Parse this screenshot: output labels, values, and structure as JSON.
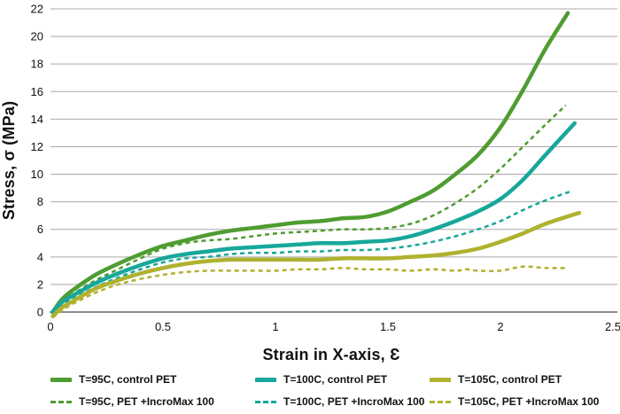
{
  "chart_data": {
    "type": "line",
    "title": "",
    "xlabel": "Strain in X-axis, Ɛ",
    "ylabel": "Stress, σ (MPa)",
    "xlim": [
      0,
      2.5
    ],
    "ylim": [
      0,
      22
    ],
    "x_ticks": [
      0,
      0.5,
      1,
      1.5,
      2,
      2.5
    ],
    "x_tick_labels": [
      "0",
      "0.5",
      "1",
      "1.5",
      "2",
      "2.5"
    ],
    "y_ticks": [
      0,
      2,
      4,
      6,
      8,
      10,
      12,
      14,
      16,
      18,
      20,
      22
    ],
    "y_tick_labels": [
      "0",
      "2",
      "4",
      "6",
      "8",
      "10",
      "12",
      "14",
      "16",
      "18",
      "20",
      "22"
    ],
    "grid": "horizontal",
    "legend_position": "bottom",
    "series": [
      {
        "name": "T=95C, control PET",
        "color": "#4f9c31",
        "style": "solid",
        "points": [
          [
            0.01,
            0
          ],
          [
            0.05,
            0.9
          ],
          [
            0.1,
            1.6
          ],
          [
            0.2,
            2.7
          ],
          [
            0.3,
            3.5
          ],
          [
            0.4,
            4.2
          ],
          [
            0.5,
            4.8
          ],
          [
            0.6,
            5.2
          ],
          [
            0.7,
            5.6
          ],
          [
            0.8,
            5.9
          ],
          [
            0.9,
            6.1
          ],
          [
            1.0,
            6.3
          ],
          [
            1.1,
            6.5
          ],
          [
            1.2,
            6.6
          ],
          [
            1.3,
            6.8
          ],
          [
            1.4,
            6.9
          ],
          [
            1.5,
            7.3
          ],
          [
            1.6,
            8.0
          ],
          [
            1.7,
            8.8
          ],
          [
            1.8,
            10.0
          ],
          [
            1.9,
            11.4
          ],
          [
            2.0,
            13.4
          ],
          [
            2.1,
            16.1
          ],
          [
            2.2,
            19.1
          ],
          [
            2.3,
            21.7
          ]
        ]
      },
      {
        "name": "T=100C, control PET",
        "color": "#17a79b",
        "style": "solid",
        "points": [
          [
            0.01,
            0
          ],
          [
            0.05,
            0.7
          ],
          [
            0.1,
            1.2
          ],
          [
            0.2,
            2.1
          ],
          [
            0.3,
            2.8
          ],
          [
            0.4,
            3.4
          ],
          [
            0.5,
            3.9
          ],
          [
            0.6,
            4.2
          ],
          [
            0.7,
            4.4
          ],
          [
            0.8,
            4.6
          ],
          [
            0.9,
            4.7
          ],
          [
            1.0,
            4.8
          ],
          [
            1.1,
            4.9
          ],
          [
            1.2,
            5.0
          ],
          [
            1.3,
            5.0
          ],
          [
            1.4,
            5.1
          ],
          [
            1.5,
            5.2
          ],
          [
            1.6,
            5.5
          ],
          [
            1.7,
            6.0
          ],
          [
            1.8,
            6.6
          ],
          [
            1.9,
            7.3
          ],
          [
            2.0,
            8.2
          ],
          [
            2.1,
            9.6
          ],
          [
            2.2,
            11.4
          ],
          [
            2.33,
            13.7
          ]
        ]
      },
      {
        "name": "T=105C, control PET",
        "color": "#b0b12f",
        "style": "solid",
        "points": [
          [
            0.01,
            -0.3
          ],
          [
            0.05,
            0.3
          ],
          [
            0.1,
            0.8
          ],
          [
            0.2,
            1.7
          ],
          [
            0.3,
            2.3
          ],
          [
            0.4,
            2.8
          ],
          [
            0.5,
            3.2
          ],
          [
            0.6,
            3.5
          ],
          [
            0.7,
            3.7
          ],
          [
            0.8,
            3.8
          ],
          [
            0.9,
            3.8
          ],
          [
            1.0,
            3.8
          ],
          [
            1.1,
            3.8
          ],
          [
            1.2,
            3.8
          ],
          [
            1.3,
            3.9
          ],
          [
            1.4,
            3.9
          ],
          [
            1.5,
            3.9
          ],
          [
            1.6,
            4.0
          ],
          [
            1.7,
            4.1
          ],
          [
            1.8,
            4.3
          ],
          [
            1.9,
            4.6
          ],
          [
            2.0,
            5.1
          ],
          [
            2.1,
            5.7
          ],
          [
            2.2,
            6.4
          ],
          [
            2.35,
            7.2
          ]
        ]
      },
      {
        "name": "T=95C, PET +IncroMax 100",
        "color": "#4f9c31",
        "style": "dashed",
        "points": [
          [
            0.01,
            0
          ],
          [
            0.05,
            0.7
          ],
          [
            0.1,
            1.3
          ],
          [
            0.2,
            2.3
          ],
          [
            0.3,
            3.1
          ],
          [
            0.4,
            3.9
          ],
          [
            0.5,
            4.6
          ],
          [
            0.6,
            5.0
          ],
          [
            0.7,
            5.2
          ],
          [
            0.8,
            5.3
          ],
          [
            0.9,
            5.5
          ],
          [
            1.0,
            5.7
          ],
          [
            1.1,
            5.8
          ],
          [
            1.2,
            5.9
          ],
          [
            1.3,
            6.0
          ],
          [
            1.4,
            6.0
          ],
          [
            1.5,
            6.1
          ],
          [
            1.6,
            6.4
          ],
          [
            1.7,
            7.0
          ],
          [
            1.8,
            7.9
          ],
          [
            1.9,
            9.0
          ],
          [
            2.0,
            10.4
          ],
          [
            2.1,
            12.0
          ],
          [
            2.2,
            13.6
          ],
          [
            2.29,
            15.0
          ]
        ]
      },
      {
        "name": "T=100C, PET +IncroMax 100",
        "color": "#17a79b",
        "style": "dashed",
        "points": [
          [
            0.01,
            0
          ],
          [
            0.05,
            0.5
          ],
          [
            0.1,
            1.0
          ],
          [
            0.2,
            1.8
          ],
          [
            0.3,
            2.5
          ],
          [
            0.4,
            3.1
          ],
          [
            0.5,
            3.6
          ],
          [
            0.6,
            3.9
          ],
          [
            0.7,
            4.0
          ],
          [
            0.8,
            4.2
          ],
          [
            0.9,
            4.3
          ],
          [
            1.0,
            4.3
          ],
          [
            1.1,
            4.4
          ],
          [
            1.2,
            4.4
          ],
          [
            1.3,
            4.5
          ],
          [
            1.4,
            4.5
          ],
          [
            1.5,
            4.6
          ],
          [
            1.6,
            4.8
          ],
          [
            1.7,
            5.1
          ],
          [
            1.8,
            5.5
          ],
          [
            1.9,
            6.0
          ],
          [
            2.0,
            6.6
          ],
          [
            2.1,
            7.4
          ],
          [
            2.2,
            8.1
          ],
          [
            2.32,
            8.8
          ]
        ]
      },
      {
        "name": "T=105C, PET +IncroMax 100",
        "color": "#b0b12f",
        "style": "dashed",
        "points": [
          [
            0.01,
            -0.4
          ],
          [
            0.05,
            0.1
          ],
          [
            0.1,
            0.6
          ],
          [
            0.2,
            1.4
          ],
          [
            0.3,
            2.0
          ],
          [
            0.4,
            2.4
          ],
          [
            0.5,
            2.7
          ],
          [
            0.6,
            2.9
          ],
          [
            0.7,
            3.0
          ],
          [
            0.8,
            3.0
          ],
          [
            0.9,
            3.0
          ],
          [
            1.0,
            3.0
          ],
          [
            1.1,
            3.1
          ],
          [
            1.2,
            3.1
          ],
          [
            1.3,
            3.2
          ],
          [
            1.4,
            3.1
          ],
          [
            1.5,
            3.1
          ],
          [
            1.6,
            3.0
          ],
          [
            1.7,
            3.1
          ],
          [
            1.8,
            3.0
          ],
          [
            1.85,
            3.1
          ],
          [
            1.9,
            3.0
          ],
          [
            2.0,
            3.0
          ],
          [
            2.1,
            3.3
          ],
          [
            2.2,
            3.2
          ],
          [
            2.3,
            3.2
          ]
        ]
      }
    ]
  },
  "style": {
    "gridline_color": "#a9a9a9",
    "axis_line_color": "#8c8c8c",
    "text_color": "#111111",
    "background": "#ffffff",
    "solid_width": 4.5,
    "dashed_width": 2.5
  }
}
